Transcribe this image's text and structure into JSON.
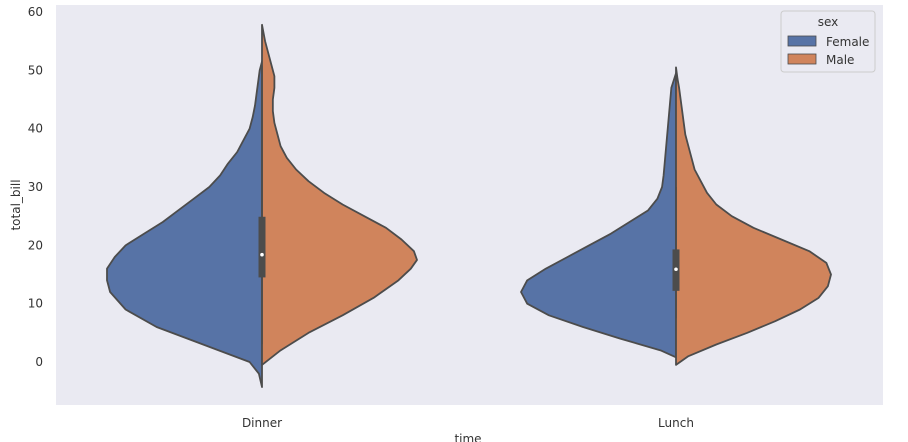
{
  "chart_data": {
    "type": "violin",
    "split": true,
    "xlabel": "time",
    "ylabel": "total_bill",
    "ylim": [
      -7.5,
      61
    ],
    "yticks": [
      0,
      10,
      20,
      30,
      40,
      50,
      60
    ],
    "categories": [
      "Dinner",
      "Lunch"
    ],
    "legend": {
      "title": "sex",
      "position": "top-right",
      "entries": [
        "Female",
        "Male"
      ]
    },
    "colors": {
      "Female": "#5773a6",
      "Male": "#d0845c",
      "outline": "#4c4c4c",
      "background": "#eaeaf2"
    },
    "grid": false,
    "series": [
      {
        "name": "Female",
        "side": "left",
        "violins": [
          {
            "category": "Dinner",
            "profile": [
              [
                -4.3,
                0
              ],
              [
                -2,
                0.02
              ],
              [
                0,
                0.08
              ],
              [
                3,
                0.38
              ],
              [
                6,
                0.68
              ],
              [
                9,
                0.88
              ],
              [
                12,
                0.98
              ],
              [
                14,
                1
              ],
              [
                16,
                1
              ],
              [
                18,
                0.95
              ],
              [
                20,
                0.88
              ],
              [
                22,
                0.76
              ],
              [
                24,
                0.64
              ],
              [
                26,
                0.54
              ],
              [
                28,
                0.44
              ],
              [
                30,
                0.34
              ],
              [
                32,
                0.27
              ],
              [
                34,
                0.22
              ],
              [
                36,
                0.16
              ],
              [
                38,
                0.12
              ],
              [
                40,
                0.08
              ],
              [
                42,
                0.06
              ],
              [
                44,
                0.045
              ],
              [
                46,
                0.035
              ],
              [
                48,
                0.025
              ],
              [
                50,
                0.015
              ],
              [
                51.5,
                0
              ]
            ]
          },
          {
            "category": "Lunch",
            "profile": [
              [
                0.8,
                0
              ],
              [
                2,
                0.1
              ],
              [
                4,
                0.36
              ],
              [
                6,
                0.6
              ],
              [
                8,
                0.82
              ],
              [
                10,
                0.96
              ],
              [
                12,
                1
              ],
              [
                14,
                0.96
              ],
              [
                16,
                0.84
              ],
              [
                18,
                0.7
              ],
              [
                20,
                0.56
              ],
              [
                22,
                0.42
              ],
              [
                24,
                0.3
              ],
              [
                26,
                0.18
              ],
              [
                28,
                0.12
              ],
              [
                30,
                0.09
              ],
              [
                32,
                0.08
              ],
              [
                35,
                0.07
              ],
              [
                38,
                0.06
              ],
              [
                41,
                0.05
              ],
              [
                44,
                0.04
              ],
              [
                47,
                0.03
              ],
              [
                49.5,
                0
              ]
            ]
          }
        ]
      },
      {
        "name": "Male",
        "side": "right",
        "violins": [
          {
            "category": "Dinner",
            "profile": [
              [
                -0.5,
                0
              ],
              [
                2,
                0.12
              ],
              [
                5,
                0.3
              ],
              [
                8,
                0.52
              ],
              [
                11,
                0.72
              ],
              [
                14,
                0.88
              ],
              [
                16,
                0.96
              ],
              [
                17.5,
                1
              ],
              [
                19,
                0.98
              ],
              [
                21,
                0.9
              ],
              [
                23,
                0.8
              ],
              [
                25,
                0.66
              ],
              [
                27,
                0.52
              ],
              [
                29,
                0.4
              ],
              [
                31,
                0.3
              ],
              [
                33,
                0.22
              ],
              [
                35,
                0.16
              ],
              [
                37,
                0.12
              ],
              [
                39,
                0.1
              ],
              [
                41,
                0.08
              ],
              [
                43,
                0.07
              ],
              [
                45,
                0.07
              ],
              [
                47,
                0.08
              ],
              [
                49,
                0.08
              ],
              [
                51,
                0.06
              ],
              [
                53,
                0.04
              ],
              [
                55,
                0.02
              ],
              [
                57.8,
                0
              ]
            ]
          },
          {
            "category": "Lunch",
            "profile": [
              [
                -0.5,
                0
              ],
              [
                1,
                0.08
              ],
              [
                3,
                0.26
              ],
              [
                5,
                0.46
              ],
              [
                7,
                0.64
              ],
              [
                9,
                0.8
              ],
              [
                11,
                0.92
              ],
              [
                13,
                0.98
              ],
              [
                15,
                1
              ],
              [
                17,
                0.97
              ],
              [
                19,
                0.86
              ],
              [
                21,
                0.68
              ],
              [
                23,
                0.5
              ],
              [
                25,
                0.36
              ],
              [
                27,
                0.26
              ],
              [
                29,
                0.2
              ],
              [
                31,
                0.16
              ],
              [
                33,
                0.12
              ],
              [
                35,
                0.1
              ],
              [
                37,
                0.08
              ],
              [
                39,
                0.06
              ],
              [
                41,
                0.05
              ],
              [
                43,
                0.04
              ],
              [
                45,
                0.03
              ],
              [
                47,
                0.02
              ],
              [
                48.5,
                0.01
              ],
              [
                50.5,
                0
              ]
            ]
          }
        ]
      }
    ],
    "box": [
      {
        "category": "Dinner",
        "whisker": [
          3.07,
          50.81
        ],
        "iqr": [
          14.5,
          24.9
        ],
        "median": 18.39
      },
      {
        "category": "Lunch",
        "whisker": [
          7.5,
          30
        ],
        "iqr": [
          12.2,
          19.3
        ],
        "median": 15.9
      }
    ]
  }
}
